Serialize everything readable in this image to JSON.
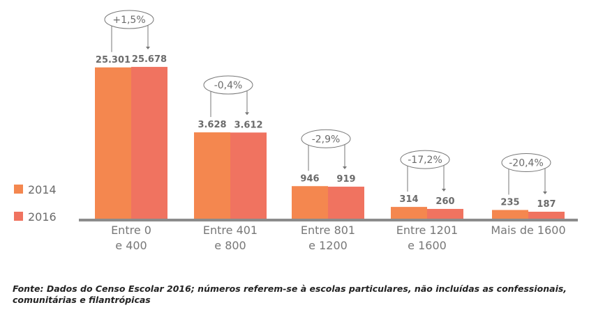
{
  "chart_data": {
    "type": "bar",
    "categories": [
      [
        "Entre 0",
        "e 400"
      ],
      [
        "Entre 401",
        "e 800"
      ],
      [
        "Entre 801",
        "e 1200"
      ],
      [
        "Entre 1201",
        "e 1600"
      ],
      [
        "Mais de 1600"
      ]
    ],
    "series": [
      {
        "name": "2014",
        "color": "#f4874f",
        "values": [
          25301,
          3628,
          946,
          314,
          235
        ],
        "labels": [
          "25.301",
          "3.628",
          "946",
          "314",
          "235"
        ]
      },
      {
        "name": "2016",
        "color": "#f07360",
        "values": [
          25678,
          3612,
          919,
          260,
          187
        ],
        "labels": [
          "25.678",
          "3.612",
          "919",
          "260",
          "187"
        ]
      }
    ],
    "annotations": [
      "+1,5%",
      "-0,4%",
      "-2,9%",
      "-17,2%",
      "-20,4%"
    ],
    "legend": "left",
    "grid": false,
    "axis_color": "#8c8c8c"
  },
  "footnote": [
    "Fonte: Dados do Censo Escolar 2016; números referem-se à escolas particulares, não incluídas as confessionais,",
    "comunitárias e filantrópicas"
  ]
}
